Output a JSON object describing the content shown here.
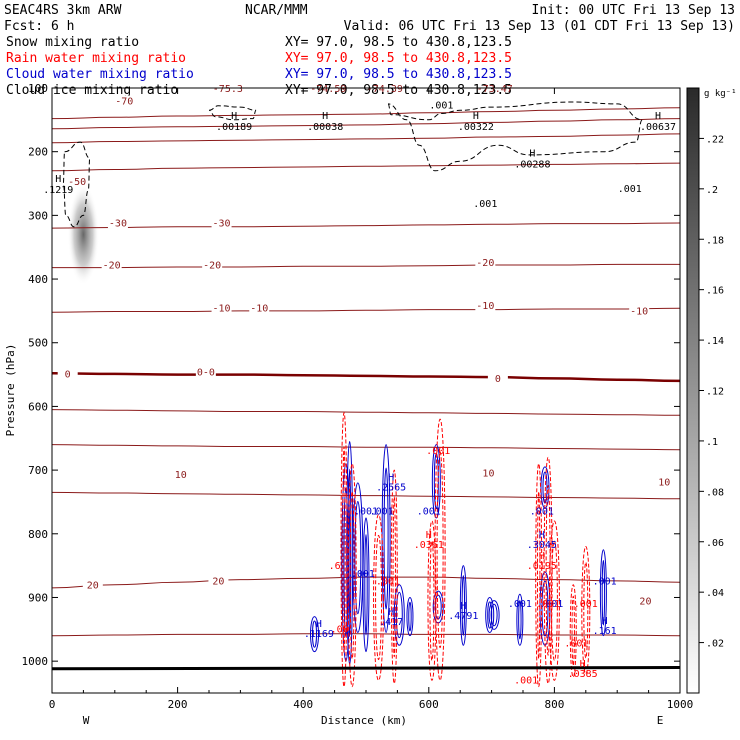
{
  "header": {
    "model": "SEAC4RS   3km ARW",
    "org": "NCAR/MMM",
    "init": "Init: 00 UTC Fri 13 Sep 13",
    "fcst": "Fcst:    6 h",
    "valid": "Valid: 06 UTC Fri 13 Sep 13  (01 CDT Fri 13 Sep 13)"
  },
  "fields": [
    {
      "name": "Snow mixing ratio",
      "xy": "XY=  97.0, 98.5 to 430.8,123.5",
      "color": "#000000"
    },
    {
      "name": "Rain water mixing ratio",
      "xy": "XY=  97.0, 98.5 to 430.8,123.5",
      "color": "#ff0000"
    },
    {
      "name": "Cloud water mixing ratio",
      "xy": "XY=  97.0, 98.5 to 430.8,123.5",
      "color": "#0000cc"
    },
    {
      "name": "Cloud ice mixing ratio",
      "xy": "XY=  97.0, 98.5 to 430.8,123.5",
      "color": "#000000"
    }
  ],
  "chart_data": {
    "type": "cross-section contour",
    "xlabel": "Distance (km)",
    "ylabel": "Pressure (hPa)",
    "xlim": [
      0,
      1000
    ],
    "ylim": [
      1050,
      100
    ],
    "x_ticks": [
      "0",
      "200",
      "400",
      "600",
      "800",
      "1000"
    ],
    "y_ticks": [
      "100",
      "200",
      "300",
      "400",
      "500",
      "600",
      "700",
      "800",
      "900",
      "1000"
    ],
    "x_end_labels": {
      "left": "W",
      "right": "E"
    },
    "colorbar": {
      "unit": "g kg⁻¹",
      "ticks": [
        ".02",
        ".04",
        ".06",
        ".08",
        ".1",
        ".12",
        ".14",
        ".16",
        ".18",
        ".2",
        ".22"
      ],
      "range": [
        0,
        0.24
      ]
    },
    "temperature_contours": [
      {
        "value": -70,
        "pressure": [
          148,
          146,
          144,
          143,
          142,
          141,
          139,
          137,
          135,
          133,
          131
        ]
      },
      {
        "value": -60,
        "pressure": [
          164,
          162,
          161,
          160,
          159,
          158,
          156,
          154,
          152,
          150,
          148
        ]
      },
      {
        "value": -50,
        "pressure": [
          186,
          184,
          183,
          182,
          181,
          180,
          179,
          177,
          176,
          174,
          172
        ]
      },
      {
        "value": -40,
        "pressure": [
          230,
          228,
          226,
          225,
          224,
          223,
          222,
          221,
          220,
          219,
          218
        ]
      },
      {
        "value": -30,
        "pressure": [
          320,
          319,
          318,
          318,
          317,
          316,
          315,
          314,
          313,
          313,
          312
        ]
      },
      {
        "value": -20,
        "pressure": [
          382,
          382,
          381,
          381,
          380,
          380,
          379,
          378,
          378,
          377,
          377
        ]
      },
      {
        "value": -10,
        "pressure": [
          452,
          451,
          451,
          450,
          450,
          449,
          448,
          448,
          447,
          447,
          446
        ]
      },
      {
        "value": 0,
        "pressure": [
          548,
          549,
          550,
          550,
          551,
          552,
          553,
          554,
          556,
          558,
          560
        ]
      },
      {
        "value": 5,
        "pressure": [
          605,
          606,
          607,
          608,
          608,
          609,
          610,
          611,
          612,
          613,
          614
        ]
      },
      {
        "value": 10,
        "pressure": [
          660,
          661,
          662,
          663,
          663,
          664,
          664,
          665,
          666,
          667,
          668
        ]
      },
      {
        "value": 15,
        "pressure": [
          735,
          736,
          737,
          738,
          739,
          740,
          741,
          742,
          743,
          744,
          745
        ]
      },
      {
        "value": 20,
        "pressure": [
          885,
          880,
          876,
          872,
          870,
          868,
          868,
          870,
          872,
          874,
          876
        ]
      },
      {
        "value": 25,
        "pressure": [
          960,
          959,
          958,
          958,
          957,
          957,
          958,
          958,
          959,
          959,
          960
        ]
      }
    ],
    "temperature_labels": [
      {
        "text": "-70",
        "x": 115,
        "p": 120
      },
      {
        "text": "-50",
        "x": 40,
        "p": 246
      },
      {
        "text": "-30",
        "x": 105,
        "p": 311
      },
      {
        "text": "-30",
        "x": 270,
        "p": 311
      },
      {
        "text": "-20",
        "x": 95,
        "p": 377
      },
      {
        "text": "-20",
        "x": 255,
        "p": 377
      },
      {
        "text": "-20",
        "x": 690,
        "p": 373
      },
      {
        "text": "-10",
        "x": 270,
        "p": 445
      },
      {
        "text": "-10",
        "x": 330,
        "p": 445
      },
      {
        "text": "-10",
        "x": 690,
        "p": 441
      },
      {
        "text": "-10",
        "x": 935,
        "p": 449
      },
      {
        "text": "0",
        "x": 25,
        "p": 548
      },
      {
        "text": "0-0",
        "x": 245,
        "p": 545
      },
      {
        "text": "0",
        "x": 710,
        "p": 555
      },
      {
        "text": "10",
        "x": 205,
        "p": 706
      },
      {
        "text": "10",
        "x": 695,
        "p": 704
      },
      {
        "text": "10",
        "x": 975,
        "p": 718
      },
      {
        "text": "20",
        "x": 65,
        "p": 880
      },
      {
        "text": "20",
        "x": 265,
        "p": 873
      },
      {
        "text": "20",
        "x": 945,
        "p": 905
      }
    ],
    "top_edge_labels": [
      {
        "text": "-75.3",
        "x": 280
      },
      {
        "text": "-74.59",
        "x": 440
      },
      {
        "text": "-74.39",
        "x": 530
      },
      {
        "text": "-73.47",
        "x": 705
      }
    ],
    "cloud_ice_maxima": [
      {
        "value": ".00189",
        "x": 290,
        "p": 161
      },
      {
        "value": ".00038",
        "x": 435,
        "p": 161
      },
      {
        "value": ".00322",
        "x": 675,
        "p": 161
      },
      {
        "value": ".00288",
        "x": 765,
        "p": 220
      },
      {
        "value": ".00637",
        "x": 965,
        "p": 161
      },
      {
        "value": ".1219",
        "x": 10,
        "p": 260
      }
    ],
    "cloud_ice_contour_labels": [
      {
        "text": ".001",
        "x": 620,
        "p": 132
      },
      {
        "text": ".001",
        "x": 690,
        "p": 287
      },
      {
        "text": ".001",
        "x": 920,
        "p": 263
      }
    ],
    "cloud_water_maxima": [
      {
        "value": ".2565",
        "x": 540,
        "p": 732
      },
      {
        "value": ".3045",
        "x": 780,
        "p": 822
      },
      {
        "value": ".4791",
        "x": 655,
        "p": 934
      },
      {
        "value": ".417",
        "x": 540,
        "p": 943
      },
      {
        "value": ".1169",
        "x": 425,
        "p": 962
      },
      {
        "value": ".161",
        "x": 880,
        "p": 957
      },
      {
        "value": ".001",
        "x": 600,
        "p": 770
      },
      {
        "value": ".001",
        "x": 780,
        "p": 770
      },
      {
        "value": ".001",
        "x": 495,
        "p": 868
      },
      {
        "value": ".001",
        "x": 880,
        "p": 880
      },
      {
        "value": ".001",
        "x": 745,
        "p": 915
      },
      {
        "value": ".001",
        "x": 795,
        "p": 915
      },
      {
        "value": ".001",
        "x": 500,
        "p": 770
      },
      {
        "value": ".001",
        "x": 525,
        "p": 770
      }
    ],
    "rain_water_maxima": [
      {
        "value": ".0361",
        "x": 600,
        "p": 822
      },
      {
        "value": ".0195",
        "x": 780,
        "p": 855
      },
      {
        "value": ".0385",
        "x": 845,
        "p": 1025
      },
      {
        "value": ".001",
        "x": 615,
        "p": 675
      },
      {
        "value": ".001",
        "x": 535,
        "p": 880
      },
      {
        "value": ".001",
        "x": 790,
        "p": 915
      },
      {
        "value": ".001",
        "x": 850,
        "p": 915
      },
      {
        "value": ".001",
        "x": 835,
        "p": 977
      },
      {
        "value": ".001",
        "x": 755,
        "p": 1035
      },
      {
        "value": ".6",
        "x": 450,
        "p": 855
      },
      {
        "value": ".00",
        "x": 458,
        "p": 955
      }
    ],
    "cloud_water_cells": [
      {
        "x": 474,
        "top": 655,
        "bottom": 1005
      },
      {
        "x": 468,
        "top": 690,
        "bottom": 1000
      },
      {
        "x": 487,
        "top": 720,
        "bottom": 955
      },
      {
        "x": 500,
        "top": 775,
        "bottom": 985
      },
      {
        "x": 532,
        "top": 660,
        "bottom": 955
      },
      {
        "x": 553,
        "top": 880,
        "bottom": 975
      },
      {
        "x": 570,
        "top": 900,
        "bottom": 960
      },
      {
        "x": 612,
        "top": 660,
        "bottom": 775
      },
      {
        "x": 615,
        "top": 890,
        "bottom": 940
      },
      {
        "x": 655,
        "top": 850,
        "bottom": 975
      },
      {
        "x": 697,
        "top": 900,
        "bottom": 955
      },
      {
        "x": 704,
        "top": 905,
        "bottom": 950
      },
      {
        "x": 745,
        "top": 895,
        "bottom": 975
      },
      {
        "x": 785,
        "top": 695,
        "bottom": 760
      },
      {
        "x": 785,
        "top": 860,
        "bottom": 975
      },
      {
        "x": 878,
        "top": 825,
        "bottom": 960
      },
      {
        "x": 418,
        "top": 930,
        "bottom": 985
      }
    ],
    "rain_water_cells": [
      {
        "x": 465,
        "top": 610,
        "bottom": 1040
      },
      {
        "x": 478,
        "top": 690,
        "bottom": 1040
      },
      {
        "x": 520,
        "top": 770,
        "bottom": 1030
      },
      {
        "x": 545,
        "top": 700,
        "bottom": 1035
      },
      {
        "x": 605,
        "top": 780,
        "bottom": 1030
      },
      {
        "x": 618,
        "top": 620,
        "bottom": 1030
      },
      {
        "x": 775,
        "top": 690,
        "bottom": 1040
      },
      {
        "x": 790,
        "top": 680,
        "bottom": 1035
      },
      {
        "x": 800,
        "top": 780,
        "bottom": 1030
      },
      {
        "x": 830,
        "top": 880,
        "bottom": 1025
      },
      {
        "x": 850,
        "top": 820,
        "bottom": 1020
      }
    ],
    "snow_plume": {
      "x": [
        25,
        75
      ],
      "p": [
        250,
        410
      ],
      "max": 0.18
    }
  }
}
